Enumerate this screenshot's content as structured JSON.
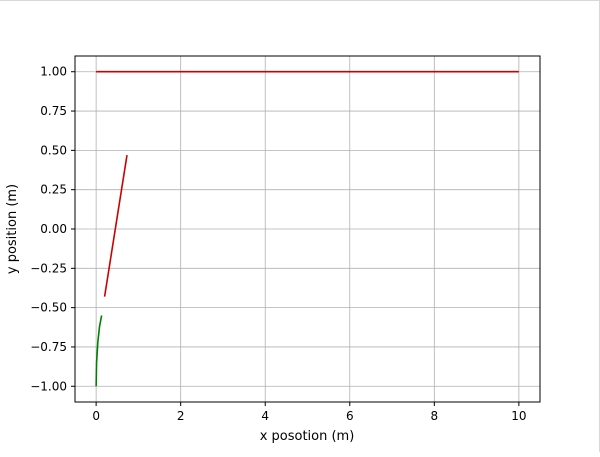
{
  "chart_data": {
    "type": "line",
    "title": "",
    "xlabel": "x posotion (m)",
    "ylabel": "y position (m)",
    "xlim": [
      -0.5,
      10.5
    ],
    "ylim": [
      -1.1,
      1.1
    ],
    "xticks": [
      0,
      2,
      4,
      6,
      8,
      10
    ],
    "xtick_labels": [
      "0",
      "2",
      "4",
      "6",
      "8",
      "10"
    ],
    "yticks": [
      -1.0,
      -0.75,
      -0.5,
      -0.25,
      0.0,
      0.25,
      0.5,
      0.75,
      1.0
    ],
    "ytick_labels": [
      "−1.00",
      "−0.75",
      "−0.50",
      "−0.25",
      "0.00",
      "0.25",
      "0.50",
      "0.75",
      "1.00"
    ],
    "grid": true,
    "legend": "none",
    "series": [
      {
        "color": "#cc0000",
        "x": [
          0,
          10
        ],
        "y": [
          1.0,
          1.0
        ]
      },
      {
        "color": "#cc0000",
        "x": [
          0.2,
          0.73
        ],
        "y": [
          -0.43,
          0.47
        ]
      },
      {
        "color": "#008000",
        "x": [
          0.0,
          0.01,
          0.04,
          0.08,
          0.13
        ],
        "y": [
          -1.0,
          -0.85,
          -0.72,
          -0.62,
          -0.55
        ]
      }
    ]
  }
}
